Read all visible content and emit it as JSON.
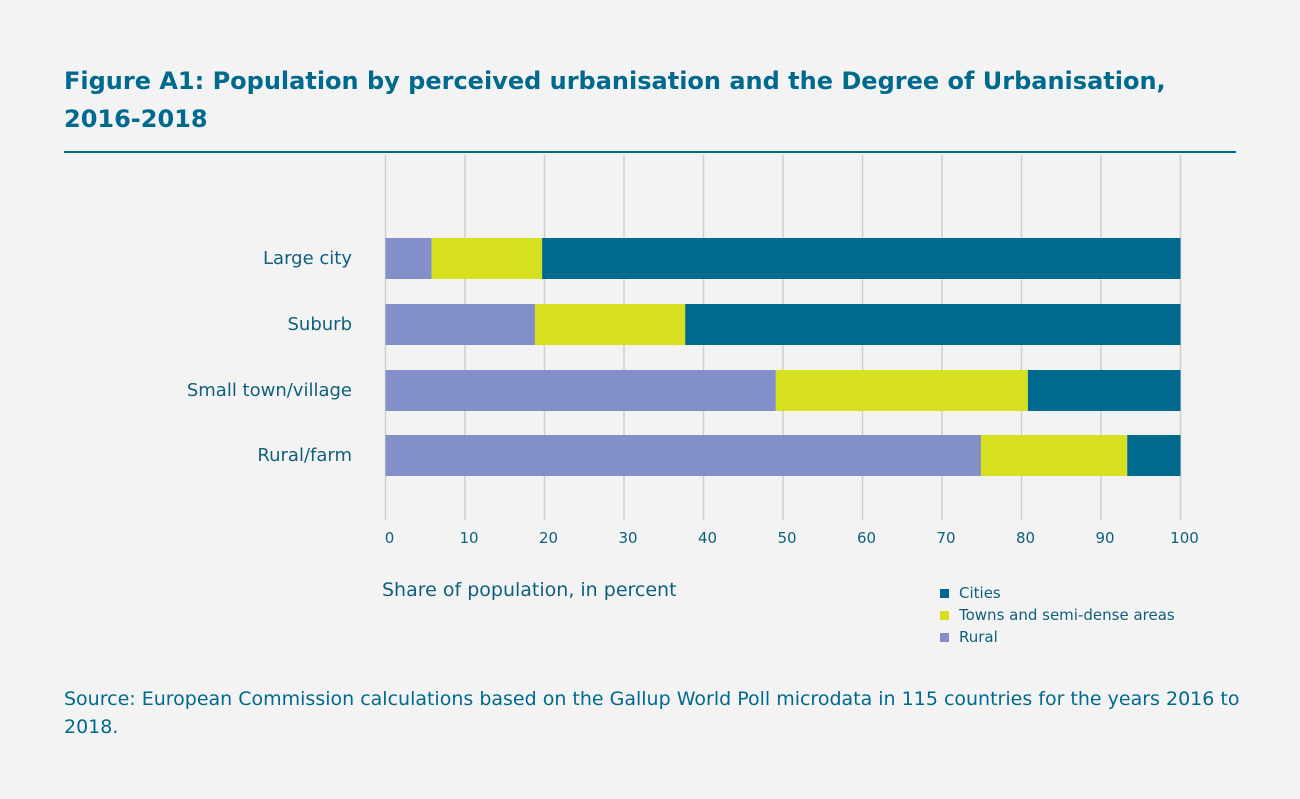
{
  "chart_data": {
    "type": "bar",
    "orientation": "horizontal",
    "stacked": true,
    "title": "Figure A1: Population by perceived urbanisation and the Degree of Urbanisation, 2016-2018",
    "categories": [
      "Large city",
      "Suburb",
      "Small town/village",
      "Rural/farm"
    ],
    "series": [
      {
        "name": "Rural",
        "color": "#828fc8",
        "values": [
          5.8,
          18.8,
          49.1,
          74.9
        ]
      },
      {
        "name": "Towns and semi-dense areas",
        "color": "#d7e01f",
        "values": [
          13.9,
          18.9,
          31.7,
          18.4
        ]
      },
      {
        "name": "Cities",
        "color": "#006a8e",
        "values": [
          80.3,
          62.3,
          19.2,
          6.7
        ]
      }
    ],
    "legend_order": [
      "Cities",
      "Towns and semi-dense areas",
      "Rural"
    ],
    "xlabel": "Share of population, in percent",
    "ylabel": "",
    "xlim": [
      0,
      100
    ],
    "xticks": [
      "0",
      "10",
      "20",
      "30",
      "40",
      "50",
      "60",
      "70",
      "80",
      "90",
      "100"
    ],
    "grid": "vertical",
    "legend_position": "bottom-right",
    "source": "Source: European Commission calculations based on the Gallup World Poll microdata in 115 countries for the years 2016 to 2018."
  }
}
